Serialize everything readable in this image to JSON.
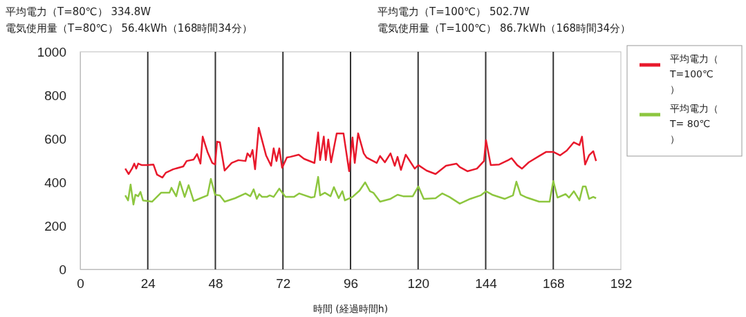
{
  "chart_data": {
    "type": "line",
    "xlabel": "時間 (経過時間h)",
    "annotations": [
      "平均電力（T=80℃） 334.8W",
      "電気使用量（T=80℃） 56.4kWh（168時間34分）",
      "平均電力（T=100℃） 502.7W",
      "電気使用量（T=100℃） 86.7kWh（168時間34分）"
    ],
    "xlim": [
      0,
      192
    ],
    "xticks": [
      0,
      24,
      48,
      72,
      96,
      120,
      144,
      168,
      192
    ],
    "ylim": [
      0,
      1000
    ],
    "yticks": [
      0,
      200,
      400,
      600,
      800,
      1000
    ],
    "grid": "x",
    "legend": "right",
    "line_style": "solid",
    "marker": "none",
    "series": [
      {
        "name": "平均電力（T=100℃）",
        "color": "#e8192c",
        "x": [
          16,
          17.2,
          18.4,
          19.2,
          19.9,
          20.6,
          21.9,
          23.8,
          26,
          27.3,
          29.2,
          30.4,
          33,
          36.6,
          37.8,
          40.3,
          41.5,
          42.7,
          43.5,
          45.2,
          46.9,
          47.9,
          48.6,
          49.6,
          51.3,
          53.8,
          56.2,
          58.7,
          59.4,
          60.4,
          61.2,
          62.1,
          63.4,
          66,
          67.8,
          68.7,
          69.7,
          70.7,
          71.7,
          73.4,
          74.6,
          77.6,
          79.5,
          83.2,
          84.5,
          85.2,
          86.5,
          87.2,
          88.1,
          89.1,
          91.1,
          93.5,
          95.5,
          96.7,
          97.5,
          98.7,
          100.7,
          101.7,
          105.3,
          106.5,
          108.2,
          110.2,
          111.7,
          112.7,
          113.9,
          115.6,
          118.8,
          120.1,
          123,
          126.2,
          129.9,
          133.6,
          134.8,
          137.5,
          140.9,
          143.4,
          144.1,
          145.8,
          148.8,
          152,
          153.2,
          155.2,
          156.9,
          159.3,
          163,
          165.5,
          168,
          170.4,
          172.8,
          175.3,
          177.3,
          178.2,
          179.3,
          180.7,
          182.2,
          183.2
        ],
        "values": [
          463,
          438,
          463,
          486,
          463,
          486,
          479,
          479,
          482,
          435,
          422,
          444,
          460,
          473,
          498,
          505,
          530,
          486,
          610,
          540,
          489,
          482,
          587,
          584,
          454,
          489,
          502,
          498,
          533,
          517,
          549,
          460,
          651,
          524,
          476,
          556,
          498,
          556,
          467,
          514,
          517,
          527,
          508,
          489,
          629,
          502,
          610,
          502,
          597,
          492,
          625,
          625,
          451,
          606,
          489,
          625,
          533,
          514,
          489,
          521,
          492,
          533,
          476,
          517,
          457,
          527,
          463,
          479,
          454,
          438,
          476,
          486,
          470,
          451,
          463,
          498,
          594,
          479,
          482,
          502,
          511,
          479,
          463,
          492,
          521,
          540,
          540,
          524,
          546,
          584,
          571,
          610,
          482,
          524,
          543,
          498
        ]
      },
      {
        "name": "平均電力（T= 80℃）",
        "color": "#8dc63f",
        "x": [
          16,
          17,
          17.9,
          18.9,
          19.6,
          20.6,
          21.4,
          22.3,
          23.8,
          25.5,
          28.7,
          31.7,
          32.4,
          34.1,
          35.4,
          37.1,
          38.5,
          40.3,
          42.7,
          45.2,
          46.4,
          47.9,
          49.6,
          51.3,
          55,
          58.7,
          60.4,
          61.6,
          62.7,
          63.6,
          64.6,
          66.3,
          67.3,
          68.7,
          70.7,
          72.9,
          75.9,
          77.8,
          82,
          83.2,
          84.5,
          85.2,
          86.9,
          88.9,
          90.1,
          91.8,
          93.1,
          94,
          96.7,
          99.2,
          101.2,
          102.9,
          104.1,
          106.5,
          110.2,
          112.7,
          114.7,
          118.1,
          120.1,
          122,
          126.2,
          128.6,
          131.1,
          134.8,
          138.5,
          142.2,
          144.1,
          146.3,
          150.8,
          153.7,
          154.9,
          156.4,
          158.6,
          163,
          166.7,
          168,
          169.5,
          172.4,
          173.6,
          175.3,
          177.3,
          178.5,
          179.5,
          180.7,
          182.2,
          183.2
        ],
        "values": [
          340,
          317,
          390,
          298,
          343,
          336,
          356,
          317,
          314,
          311,
          352,
          352,
          375,
          336,
          403,
          333,
          387,
          314,
          327,
          340,
          416,
          343,
          340,
          311,
          327,
          349,
          336,
          368,
          324,
          346,
          333,
          333,
          340,
          333,
          371,
          333,
          333,
          349,
          330,
          333,
          425,
          340,
          352,
          336,
          378,
          327,
          359,
          317,
          333,
          362,
          400,
          359,
          352,
          311,
          324,
          343,
          336,
          336,
          381,
          324,
          327,
          349,
          333,
          302,
          324,
          340,
          359,
          343,
          324,
          340,
          403,
          343,
          330,
          311,
          311,
          406,
          330,
          346,
          330,
          359,
          317,
          381,
          381,
          324,
          333,
          327
        ]
      }
    ]
  }
}
